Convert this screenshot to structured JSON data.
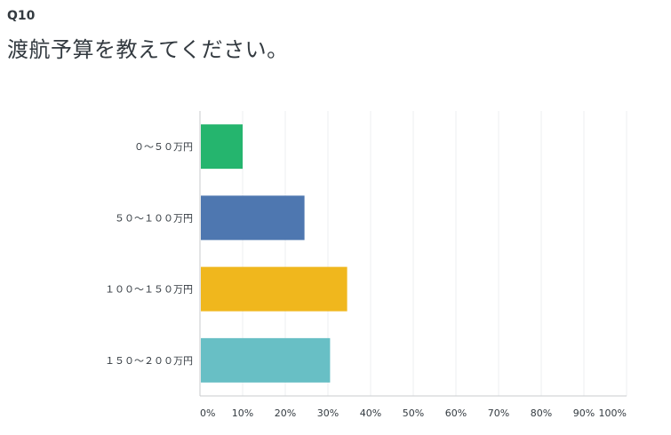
{
  "question": {
    "number": "Q10",
    "title": "渡航予算を教えてください。"
  },
  "chart_data": {
    "type": "bar",
    "orientation": "horizontal",
    "categories": [
      "０〜５０万円",
      "５０〜１００万円",
      "１００〜１５０万円",
      "１５０〜２００万円"
    ],
    "values": [
      10,
      24.5,
      34.5,
      30.5
    ],
    "colors": [
      "#25b56e",
      "#4e77b0",
      "#f0b71d",
      "#68bfc5"
    ],
    "xlim": [
      0,
      100
    ],
    "xticks": [
      "0%",
      "10%",
      "20%",
      "30%",
      "40%",
      "50%",
      "60%",
      "70%",
      "80%",
      "90%",
      "100%"
    ],
    "grid": true
  }
}
